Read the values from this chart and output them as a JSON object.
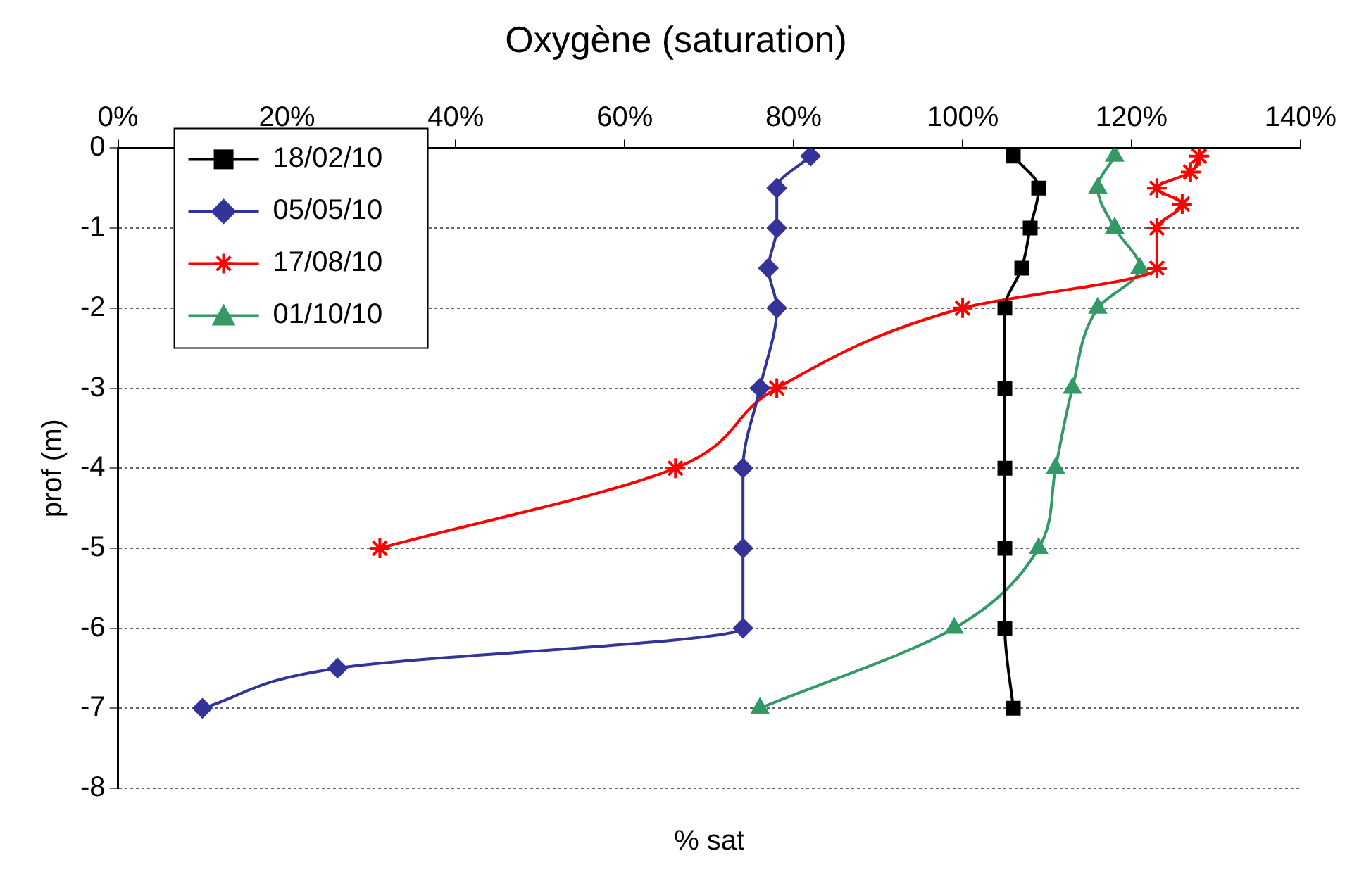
{
  "chart_data": {
    "type": "line",
    "title": "Oxygène (saturation)",
    "xlabel": "% sat",
    "ylabel": "prof (m)",
    "xlim": [
      0,
      140
    ],
    "xticks": [
      {
        "value": 0,
        "label": "0%"
      },
      {
        "value": 20,
        "label": "20%"
      },
      {
        "value": 40,
        "label": "40%"
      },
      {
        "value": 60,
        "label": "60%"
      },
      {
        "value": 80,
        "label": "80%"
      },
      {
        "value": 100,
        "label": "100%"
      },
      {
        "value": 120,
        "label": "120%"
      },
      {
        "value": 140,
        "label": "140%"
      }
    ],
    "ylim": [
      -8,
      0
    ],
    "yticks": [
      0,
      -1,
      -2,
      -3,
      -4,
      -5,
      -6,
      -7,
      -8
    ],
    "grid": "y",
    "legend": "top left",
    "series": [
      {
        "name": "18/02/10",
        "color": "#000000",
        "marker": "square",
        "x": [
          106,
          109,
          108,
          107,
          105,
          105,
          105,
          105,
          105,
          106
        ],
        "values": [
          -0.1,
          -0.5,
          -1,
          -1.5,
          -2,
          -3,
          -4,
          -5,
          -6,
          -7
        ]
      },
      {
        "name": "05/05/10",
        "color": "#333399",
        "marker": "diamond",
        "x": [
          82,
          78,
          78,
          77,
          78,
          76,
          74,
          74,
          74,
          26,
          10
        ],
        "values": [
          -0.1,
          -0.5,
          -1,
          -1.5,
          -2,
          -3,
          -4,
          -5,
          -6,
          -6.5,
          -7
        ]
      },
      {
        "name": "17/08/10",
        "color": "#ff0000",
        "marker": "cross",
        "x": [
          128,
          127,
          123,
          126,
          123,
          123,
          100,
          78,
          66,
          31
        ],
        "values": [
          -0.1,
          -0.3,
          -0.5,
          -0.7,
          -1,
          -1.5,
          -2,
          -3,
          -4,
          -5
        ]
      },
      {
        "name": "01/10/10",
        "color": "#339966",
        "marker": "triangle",
        "x": [
          118,
          116,
          118,
          121,
          116,
          113,
          111,
          109,
          99,
          76
        ],
        "values": [
          -0.1,
          -0.5,
          -1,
          -1.5,
          -2,
          -3,
          -4,
          -5,
          -6,
          -7
        ]
      }
    ]
  }
}
